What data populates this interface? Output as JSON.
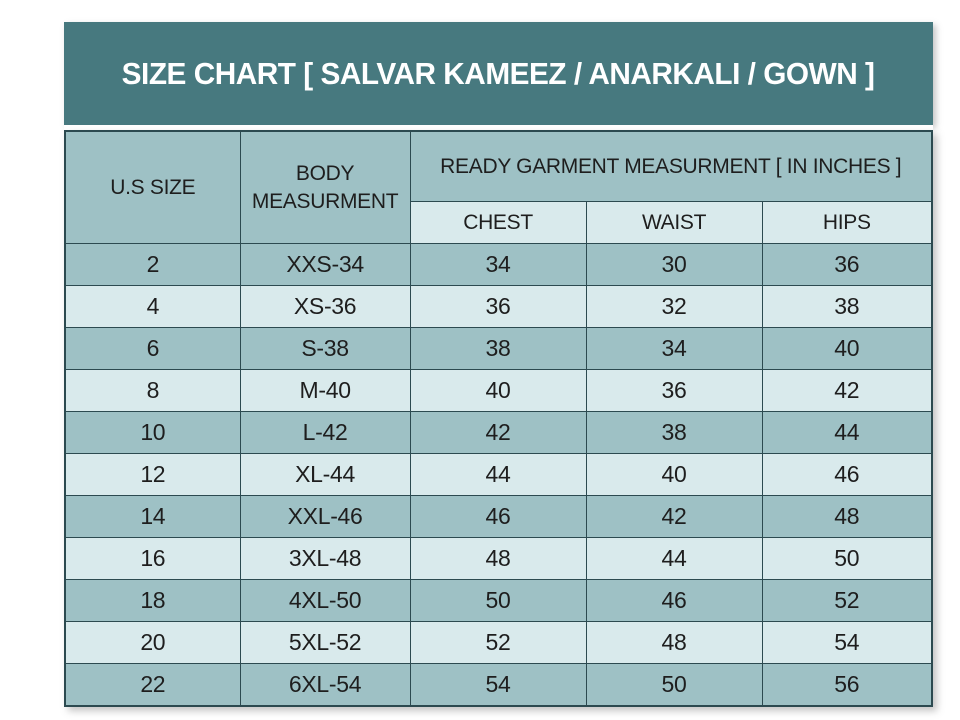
{
  "title": {
    "text": "SIZE CHART [ SALVAR KAMEEZ / ANARKALI / GOWN ]"
  },
  "colors": {
    "title_bg": "#47797F",
    "title_text": "#FFFFFF",
    "header_bg": "#9EC1C5",
    "row_dark": "#9EC1C5",
    "row_light": "#D9EAEC",
    "border": "#2C4A50",
    "cell_text": "#1E1E1E"
  },
  "chart_data": {
    "type": "table",
    "title": "SIZE CHART [ SALVAR KAMEEZ / ANARKALI / GOWN ]",
    "column_groups": {
      "ready_garment": "READY GARMENT MEASURMENT [ IN INCHES ]"
    },
    "columns": [
      "U.S SIZE",
      "BODY MEASURMENT",
      "CHEST",
      "WAIST",
      "HIPS"
    ],
    "rows": [
      [
        "2",
        "XXS-34",
        "34",
        "30",
        "36"
      ],
      [
        "4",
        "XS-36",
        "36",
        "32",
        "38"
      ],
      [
        "6",
        "S-38",
        "38",
        "34",
        "40"
      ],
      [
        "8",
        "M-40",
        "40",
        "36",
        "42"
      ],
      [
        "10",
        "L-42",
        "42",
        "38",
        "44"
      ],
      [
        "12",
        "XL-44",
        "44",
        "40",
        "46"
      ],
      [
        "14",
        "XXL-46",
        "46",
        "42",
        "48"
      ],
      [
        "16",
        "3XL-48",
        "48",
        "44",
        "50"
      ],
      [
        "18",
        "4XL-50",
        "50",
        "46",
        "52"
      ],
      [
        "20",
        "5XL-52",
        "52",
        "48",
        "54"
      ],
      [
        "22",
        "6XL-54",
        "54",
        "50",
        "56"
      ]
    ]
  }
}
